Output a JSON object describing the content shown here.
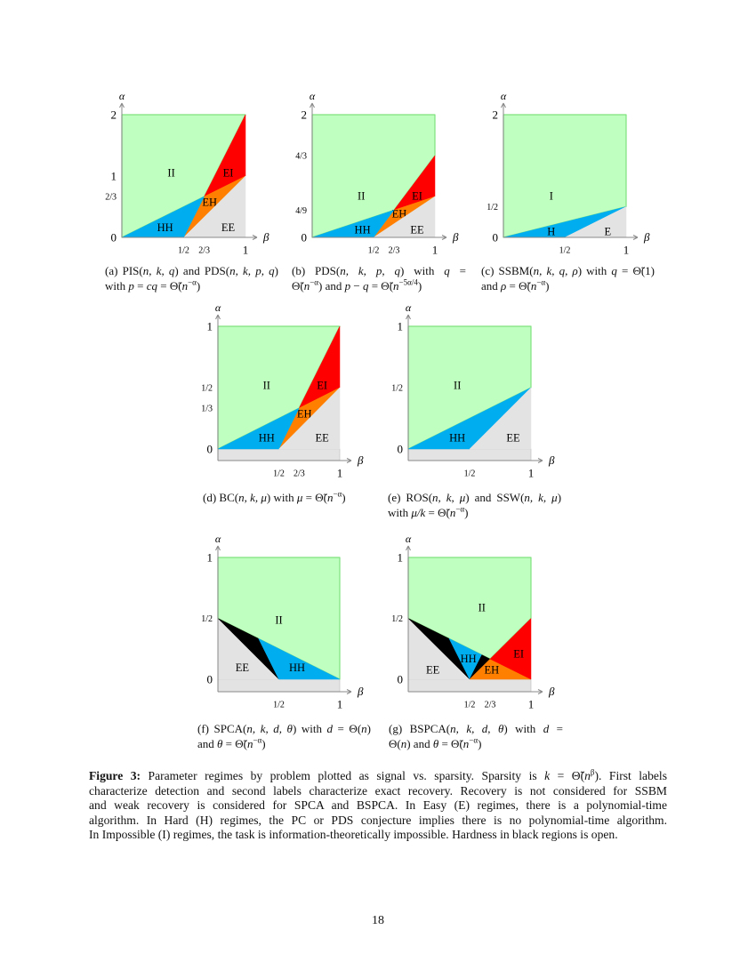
{
  "colors": {
    "II": "#bfffbf",
    "I": "#bfffbf",
    "green_edge": "#7ee27e",
    "HH": "#00aeef",
    "H": "#00aeef",
    "EI": "#ff0000",
    "EH": "#ff8000",
    "EE": "#e3e3e3",
    "E": "#e3e3e3",
    "open": "#000000",
    "axis": "#888888"
  },
  "axis_labels": {
    "x": "β",
    "y": "α"
  },
  "panels": [
    {
      "id": "a",
      "ymax": 2,
      "yticks": [
        {
          "value": 0,
          "label": "0"
        },
        {
          "value": 0.6667,
          "label": "2/3"
        },
        {
          "value": 1,
          "label": "1"
        },
        {
          "value": 2,
          "label": "2"
        }
      ],
      "xticks": [
        {
          "value": 0.5,
          "label": "1/2"
        },
        {
          "value": 0.6667,
          "label": "2/3"
        },
        {
          "value": 1,
          "label": "1"
        }
      ],
      "regions": [
        {
          "name": "II",
          "points": [
            [
              0,
              0
            ],
            [
              0.6667,
              0.6667
            ],
            [
              1,
              2
            ],
            [
              0,
              2
            ]
          ]
        },
        {
          "name": "EI",
          "points": [
            [
              0.6667,
              0.6667
            ],
            [
              1,
              2
            ],
            [
              1,
              1
            ]
          ]
        },
        {
          "name": "EH",
          "points": [
            [
              0.5,
              0
            ],
            [
              0.6667,
              0.6667
            ],
            [
              1,
              1
            ]
          ]
        },
        {
          "name": "HH",
          "points": [
            [
              0,
              0
            ],
            [
              0.6667,
              0.6667
            ],
            [
              0.5,
              0
            ]
          ]
        },
        {
          "name": "EE",
          "points": [
            [
              0.5,
              0
            ],
            [
              1,
              1
            ],
            [
              1,
              0
            ]
          ]
        }
      ],
      "caption": [
        [
          {
            "t": "(a) PIS("
          },
          {
            "t": "n, k, q",
            "i": 1
          },
          {
            "t": ") and PDS("
          },
          {
            "t": "n, k, p, q",
            "i": 1
          },
          {
            "t": ")"
          }
        ],
        [
          {
            "t": "with "
          },
          {
            "t": "p",
            "i": 1
          },
          {
            "t": " = "
          },
          {
            "t": "cq",
            "i": 1
          },
          {
            "t": " = Θ̃("
          },
          {
            "t": "n",
            "i": 1
          },
          {
            "t": "−α",
            "sup": 1
          },
          {
            "t": ")"
          }
        ]
      ]
    },
    {
      "id": "b",
      "ymax": 2,
      "yticks": [
        {
          "value": 0,
          "label": "0"
        },
        {
          "value": 0.4444,
          "label": "4/9"
        },
        {
          "value": 1.3333,
          "label": "4/3"
        },
        {
          "value": 2,
          "label": "2"
        }
      ],
      "xticks": [
        {
          "value": 0.5,
          "label": "1/2"
        },
        {
          "value": 0.6667,
          "label": "2/3"
        },
        {
          "value": 1,
          "label": "1"
        }
      ],
      "regions": [
        {
          "name": "II",
          "points": [
            [
              0,
              0
            ],
            [
              0.6667,
              0.4444
            ],
            [
              1,
              1.3333
            ],
            [
              1,
              2
            ],
            [
              0,
              2
            ]
          ]
        },
        {
          "name": "EI",
          "points": [
            [
              0.6667,
              0.4444
            ],
            [
              1,
              1.3333
            ],
            [
              1,
              0.6667
            ]
          ]
        },
        {
          "name": "EH",
          "points": [
            [
              0.5,
              0
            ],
            [
              0.6667,
              0.4444
            ],
            [
              1,
              0.6667
            ]
          ]
        },
        {
          "name": "HH",
          "points": [
            [
              0,
              0
            ],
            [
              0.6667,
              0.4444
            ],
            [
              0.5,
              0
            ]
          ]
        },
        {
          "name": "EE",
          "points": [
            [
              0.5,
              0
            ],
            [
              1,
              0.6667
            ],
            [
              1,
              0
            ]
          ]
        }
      ],
      "caption": [
        [
          {
            "t": "(b) PDS("
          },
          {
            "t": "n, k, p, q",
            "i": 1
          },
          {
            "t": ") with "
          },
          {
            "t": "q",
            "i": 1
          },
          {
            "t": " ="
          }
        ],
        [
          {
            "t": "Θ̃("
          },
          {
            "t": "n",
            "i": 1
          },
          {
            "t": "−α",
            "sup": 1
          },
          {
            "t": ") and "
          },
          {
            "t": "p",
            "i": 1
          },
          {
            "t": " − "
          },
          {
            "t": "q",
            "i": 1
          },
          {
            "t": " = Θ̃("
          },
          {
            "t": "n",
            "i": 1
          },
          {
            "t": "−5α/4",
            "sup": 1
          },
          {
            "t": ")"
          }
        ]
      ]
    },
    {
      "id": "c",
      "ymax": 2,
      "yticks": [
        {
          "value": 0,
          "label": "0"
        },
        {
          "value": 0.5,
          "label": "1/2"
        },
        {
          "value": 2,
          "label": "2"
        }
      ],
      "xticks": [
        {
          "value": 0.5,
          "label": "1/2"
        },
        {
          "value": 1,
          "label": "1"
        }
      ],
      "regions": [
        {
          "name": "I",
          "points": [
            [
              0,
              0
            ],
            [
              1,
              0.5
            ],
            [
              1,
              2
            ],
            [
              0,
              2
            ]
          ]
        },
        {
          "name": "H",
          "points": [
            [
              0,
              0
            ],
            [
              1,
              0.5
            ],
            [
              0.5,
              0
            ]
          ]
        },
        {
          "name": "E",
          "points": [
            [
              0.5,
              0
            ],
            [
              1,
              0.5
            ],
            [
              1,
              0
            ]
          ]
        }
      ],
      "caption": [
        [
          {
            "t": "(c) SSBM("
          },
          {
            "t": "n, k, q, ρ",
            "i": 1
          },
          {
            "t": ") with "
          },
          {
            "t": "q",
            "i": 1
          },
          {
            "t": " = Θ̃(1)"
          }
        ],
        [
          {
            "t": "and "
          },
          {
            "t": "ρ",
            "i": 1
          },
          {
            "t": " = Θ̃("
          },
          {
            "t": "n",
            "i": 1
          },
          {
            "t": "−α",
            "sup": 1
          },
          {
            "t": ")"
          }
        ]
      ]
    },
    {
      "id": "d",
      "ymax": 1,
      "yticks": [
        {
          "value": 0,
          "label": "0"
        },
        {
          "value": 0.3333,
          "label": "1/3"
        },
        {
          "value": 0.5,
          "label": "1/2"
        },
        {
          "value": 1,
          "label": "1"
        }
      ],
      "xticks": [
        {
          "value": 0.5,
          "label": "1/2"
        },
        {
          "value": 0.6667,
          "label": "2/3"
        },
        {
          "value": 1,
          "label": "1"
        }
      ],
      "regions": [
        {
          "name": "II",
          "points": [
            [
              0,
              0
            ],
            [
              0.6667,
              0.3333
            ],
            [
              1,
              1
            ],
            [
              0,
              1
            ]
          ]
        },
        {
          "name": "EI",
          "points": [
            [
              0.6667,
              0.3333
            ],
            [
              1,
              1
            ],
            [
              1,
              0.5
            ]
          ]
        },
        {
          "name": "EH",
          "points": [
            [
              0.5,
              0
            ],
            [
              0.6667,
              0.3333
            ],
            [
              1,
              0.5
            ]
          ]
        },
        {
          "name": "HH",
          "points": [
            [
              0,
              0
            ],
            [
              0.6667,
              0.3333
            ],
            [
              0.5,
              0
            ]
          ]
        },
        {
          "name": "EE",
          "points": [
            [
              0.5,
              0
            ],
            [
              1,
              0.5
            ],
            [
              1,
              0
            ]
          ]
        }
      ],
      "caption": [
        [
          {
            "t": "(d) BC("
          },
          {
            "t": "n, k, μ",
            "i": 1
          },
          {
            "t": ") with "
          },
          {
            "t": "μ",
            "i": 1
          },
          {
            "t": " = Θ̃("
          },
          {
            "t": "n",
            "i": 1
          },
          {
            "t": "−α",
            "sup": 1
          },
          {
            "t": ")"
          }
        ]
      ]
    },
    {
      "id": "e",
      "ymax": 1,
      "yticks": [
        {
          "value": 0,
          "label": "0"
        },
        {
          "value": 0.5,
          "label": "1/2"
        },
        {
          "value": 1,
          "label": "1"
        }
      ],
      "xticks": [
        {
          "value": 0.5,
          "label": "1/2"
        },
        {
          "value": 1,
          "label": "1"
        }
      ],
      "regions": [
        {
          "name": "II",
          "points": [
            [
              0,
              0
            ],
            [
              1,
              0.5
            ],
            [
              1,
              1
            ],
            [
              0,
              1
            ]
          ]
        },
        {
          "name": "HH",
          "points": [
            [
              0,
              0
            ],
            [
              1,
              0.5
            ],
            [
              0.5,
              0
            ]
          ]
        },
        {
          "name": "EE",
          "points": [
            [
              0.5,
              0
            ],
            [
              1,
              0.5
            ],
            [
              1,
              0
            ]
          ]
        }
      ],
      "caption": [
        [
          {
            "t": "(e) ROS("
          },
          {
            "t": "n, k, μ",
            "i": 1
          },
          {
            "t": ") and SSW("
          },
          {
            "t": "n, k, μ",
            "i": 1
          },
          {
            "t": ")"
          }
        ],
        [
          {
            "t": "with "
          },
          {
            "t": "μ/k",
            "i": 1
          },
          {
            "t": " = Θ̃("
          },
          {
            "t": "n",
            "i": 1
          },
          {
            "t": "−α",
            "sup": 1
          },
          {
            "t": ")"
          }
        ]
      ]
    },
    {
      "id": "f",
      "ymax": 1,
      "yticks": [
        {
          "value": 0,
          "label": "0"
        },
        {
          "value": 0.5,
          "label": "1/2"
        },
        {
          "value": 1,
          "label": "1"
        }
      ],
      "xticks": [
        {
          "value": 0.5,
          "label": "1/2"
        },
        {
          "value": 1,
          "label": "1"
        }
      ],
      "regions": [
        {
          "name": "II",
          "points": [
            [
              0,
              0.5
            ],
            [
              1,
              0
            ],
            [
              1,
              1
            ],
            [
              0,
              1
            ]
          ]
        },
        {
          "name": "EE",
          "points": [
            [
              0,
              0
            ],
            [
              0,
              0.5
            ],
            [
              0.5,
              0
            ],
            [
              1,
              0
            ]
          ]
        },
        {
          "name": "open",
          "points": [
            [
              0,
              0.5
            ],
            [
              0.3333,
              0.3333
            ],
            [
              0.5,
              0
            ]
          ]
        },
        {
          "name": "HH",
          "points": [
            [
              0.3333,
              0.3333
            ],
            [
              1,
              0
            ],
            [
              0.5,
              0
            ]
          ]
        }
      ],
      "caption": [
        [
          {
            "t": "(f) SPCA("
          },
          {
            "t": "n, k, d, θ",
            "i": 1
          },
          {
            "t": ") with "
          },
          {
            "t": "d",
            "i": 1
          },
          {
            "t": " = Θ("
          },
          {
            "t": "n",
            "i": 1
          },
          {
            "t": ")"
          }
        ],
        [
          {
            "t": "and "
          },
          {
            "t": "θ",
            "i": 1
          },
          {
            "t": " = Θ̃("
          },
          {
            "t": "n",
            "i": 1
          },
          {
            "t": "−α",
            "sup": 1
          },
          {
            "t": ")"
          }
        ]
      ]
    },
    {
      "id": "g",
      "ymax": 1,
      "yticks": [
        {
          "value": 0,
          "label": "0"
        },
        {
          "value": 0.5,
          "label": "1/2"
        },
        {
          "value": 1,
          "label": "1"
        }
      ],
      "xticks": [
        {
          "value": 0.5,
          "label": "1/2"
        },
        {
          "value": 0.6667,
          "label": "2/3"
        },
        {
          "value": 1,
          "label": "1"
        }
      ],
      "regions": [
        {
          "name": "II",
          "points": [
            [
              0,
              0.5
            ],
            [
              0.6667,
              0.1667
            ],
            [
              1,
              0.5
            ],
            [
              1,
              1
            ],
            [
              0,
              1
            ]
          ]
        },
        {
          "name": "EE",
          "points": [
            [
              0,
              0
            ],
            [
              0,
              0.5
            ],
            [
              0.5,
              0
            ]
          ]
        },
        {
          "name": "open",
          "points": [
            [
              0,
              0.5
            ],
            [
              0.3333,
              0.3333
            ],
            [
              0.5,
              0
            ]
          ]
        },
        {
          "name": "HH",
          "points": [
            [
              0.3333,
              0.3333
            ],
            [
              0.6,
              0.2
            ],
            [
              0.5,
              0
            ]
          ]
        },
        {
          "name": "open",
          "points": [
            [
              0.5,
              0
            ],
            [
              0.6,
              0.2
            ],
            [
              0.6667,
              0.1667
            ]
          ]
        },
        {
          "name": "EH",
          "points": [
            [
              0.5,
              0
            ],
            [
              0.6667,
              0.1667
            ],
            [
              1,
              0
            ]
          ]
        },
        {
          "name": "EI",
          "points": [
            [
              0.6667,
              0.1667
            ],
            [
              1,
              0.5
            ],
            [
              1,
              0
            ]
          ]
        }
      ],
      "caption": [
        [
          {
            "t": "(g) BSPCA("
          },
          {
            "t": "n, k, d, θ",
            "i": 1
          },
          {
            "t": ") with "
          },
          {
            "t": "d",
            "i": 1
          },
          {
            "t": " ="
          }
        ],
        [
          {
            "t": "Θ("
          },
          {
            "t": "n",
            "i": 1
          },
          {
            "t": ") and "
          },
          {
            "t": "θ",
            "i": 1
          },
          {
            "t": " = Θ̃("
          },
          {
            "t": "n",
            "i": 1
          },
          {
            "t": "−α",
            "sup": 1
          },
          {
            "t": ")"
          }
        ]
      ]
    }
  ],
  "figure_caption": [
    [
      {
        "t": "Figure 3:",
        "b": 1
      },
      {
        "t": " Parameter regimes by problem plotted as signal vs. sparsity. Sparsity is "
      },
      {
        "t": "k",
        "i": 1
      },
      {
        "t": " = Θ̃("
      },
      {
        "t": "n",
        "i": 1
      },
      {
        "t": "β",
        "sup": 1
      },
      {
        "t": "). First labels"
      }
    ],
    [
      {
        "t": "characterize detection and second labels characterize exact recovery. Recovery is not considered for SSBM"
      }
    ],
    [
      {
        "t": "and weak recovery is considered for SPCA and BSPCA. In Easy (E) regimes, there is a polynomial-time"
      }
    ],
    [
      {
        "t": "algorithm. In Hard (H) regimes, the PC or PDS conjecture implies there is no polynomial-time algorithm."
      }
    ],
    [
      {
        "t": "In Impossible (I) regimes, the task is information-theoretically impossible. Hardness in black regions is open."
      }
    ]
  ],
  "page_number": "18"
}
